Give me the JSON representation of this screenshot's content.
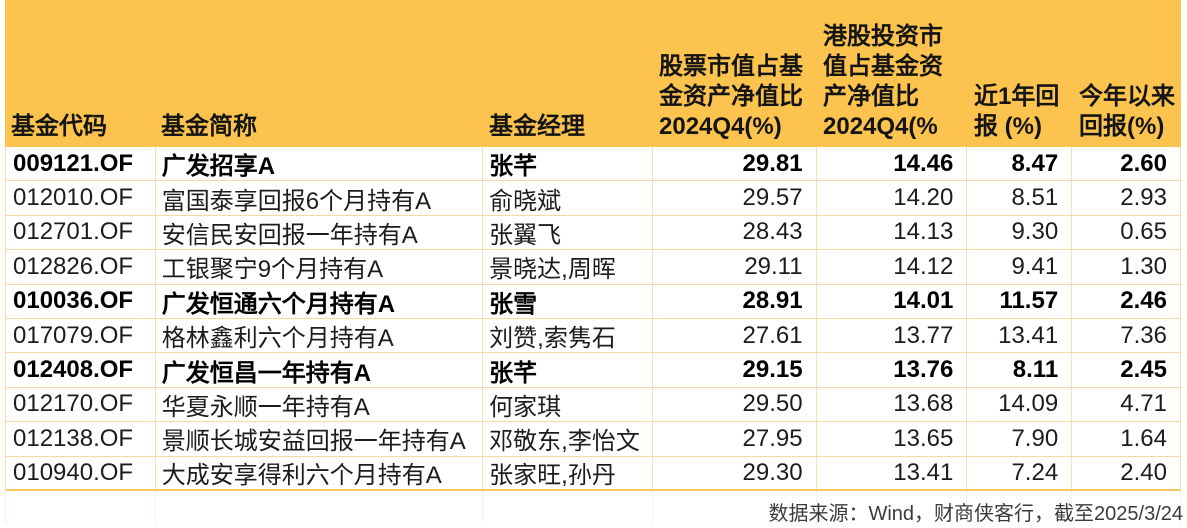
{
  "table": {
    "columns": [
      {
        "key": "code",
        "label": "基金代码"
      },
      {
        "key": "name",
        "label": "基金简称"
      },
      {
        "key": "manager",
        "label": "基金经理"
      },
      {
        "key": "stock_pct",
        "label": "股票市值占基\n金资产净值比\n2024Q4(%)"
      },
      {
        "key": "hk_pct",
        "label": "港股投资市\n值占基金资\n产净值比\n2024Q4(%"
      },
      {
        "key": "return_1y",
        "label": "近1年回\n报 (%)"
      },
      {
        "key": "return_ytd",
        "label": "今年以来\n回报(%)"
      }
    ],
    "rows": [
      {
        "code": "009121.OF",
        "name": "广发招享A",
        "manager": "张芊",
        "stock_pct": "29.81",
        "hk_pct": "14.46",
        "return_1y": "8.47",
        "return_ytd": "2.60",
        "bold": true
      },
      {
        "code": "012010.OF",
        "name": "富国泰享回报6个月持有A",
        "manager": "俞晓斌",
        "stock_pct": "29.57",
        "hk_pct": "14.20",
        "return_1y": "8.51",
        "return_ytd": "2.93",
        "bold": false
      },
      {
        "code": "012701.OF",
        "name": "安信民安回报一年持有A",
        "manager": "张翼飞",
        "stock_pct": "28.43",
        "hk_pct": "14.13",
        "return_1y": "9.30",
        "return_ytd": "0.65",
        "bold": false
      },
      {
        "code": "012826.OF",
        "name": "工银聚宁9个月持有A",
        "manager": "景晓达,周晖",
        "stock_pct": "29.11",
        "hk_pct": "14.12",
        "return_1y": "9.41",
        "return_ytd": "1.30",
        "bold": false
      },
      {
        "code": "010036.OF",
        "name": "广发恒通六个月持有A",
        "manager": "张雪",
        "stock_pct": "28.91",
        "hk_pct": "14.01",
        "return_1y": "11.57",
        "return_ytd": "2.46",
        "bold": true
      },
      {
        "code": "017079.OF",
        "name": "格林鑫利六个月持有A",
        "manager": "刘赞,索隽石",
        "stock_pct": "27.61",
        "hk_pct": "13.77",
        "return_1y": "13.41",
        "return_ytd": "7.36",
        "bold": false
      },
      {
        "code": "012408.OF",
        "name": "广发恒昌一年持有A",
        "manager": "张芊",
        "stock_pct": "29.15",
        "hk_pct": "13.76",
        "return_1y": "8.11",
        "return_ytd": "2.45",
        "bold": true
      },
      {
        "code": "012170.OF",
        "name": "华夏永顺一年持有A",
        "manager": "何家琪",
        "stock_pct": "29.50",
        "hk_pct": "13.68",
        "return_1y": "14.09",
        "return_ytd": "4.71",
        "bold": false
      },
      {
        "code": "012138.OF",
        "name": "景顺长城安益回报一年持有A",
        "manager": "邓敬东,李怡文",
        "stock_pct": "27.95",
        "hk_pct": "13.65",
        "return_1y": "7.90",
        "return_ytd": "1.64",
        "bold": false
      },
      {
        "code": "010940.OF",
        "name": "大成安享得利六个月持有A",
        "manager": "张家旺,孙丹",
        "stock_pct": "29.30",
        "hk_pct": "13.41",
        "return_1y": "7.24",
        "return_ytd": "2.40",
        "bold": false
      }
    ]
  },
  "footer": {
    "source_note": "数据来源：Wind，财商侠客行，截至2025/3/24"
  },
  "colors": {
    "header_bg": "#FCC44E",
    "row_border": "#F7D9A4",
    "cell_border": "#F9E0B0",
    "text": "#1C1C1C",
    "footer_text": "#3B3B3B"
  },
  "chart_data": {
    "type": "table",
    "columns": [
      "基金代码",
      "基金简称",
      "基金经理",
      "股票市值占基金资产净值比2024Q4(%)",
      "港股投资市值占基金资产净值比2024Q4(%)",
      "近1年回报(%)",
      "今年以来回报(%)"
    ],
    "rows": [
      [
        "009121.OF",
        "广发招享A",
        "张芊",
        29.81,
        14.46,
        8.47,
        2.6
      ],
      [
        "012010.OF",
        "富国泰享回报6个月持有A",
        "俞晓斌",
        29.57,
        14.2,
        8.51,
        2.93
      ],
      [
        "012701.OF",
        "安信民安回报一年持有A",
        "张翼飞",
        28.43,
        14.13,
        9.3,
        0.65
      ],
      [
        "012826.OF",
        "工银聚宁9个月持有A",
        "景晓达,周晖",
        29.11,
        14.12,
        9.41,
        1.3
      ],
      [
        "010036.OF",
        "广发恒通六个月持有A",
        "张雪",
        28.91,
        14.01,
        11.57,
        2.46
      ],
      [
        "017079.OF",
        "格林鑫利六个月持有A",
        "刘赞,索隽石",
        27.61,
        13.77,
        13.41,
        7.36
      ],
      [
        "012408.OF",
        "广发恒昌一年持有A",
        "张芊",
        29.15,
        13.76,
        8.11,
        2.45
      ],
      [
        "012170.OF",
        "华夏永顺一年持有A",
        "何家琪",
        29.5,
        13.68,
        14.09,
        4.71
      ],
      [
        "012138.OF",
        "景顺长城安益回报一年持有A",
        "邓敬东,李怡文",
        27.95,
        13.65,
        7.9,
        1.64
      ],
      [
        "010940.OF",
        "大成安享得利六个月持有A",
        "张家旺,孙丹",
        29.3,
        13.41,
        7.24,
        2.4
      ]
    ],
    "highlighted_bold_rows": [
      0,
      4,
      6
    ],
    "source_note": "数据来源：Wind，财商侠客行，截至2025/3/24"
  }
}
